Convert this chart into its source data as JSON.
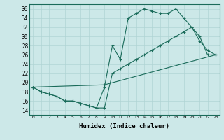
{
  "xlabel": "Humidex (Indice chaleur)",
  "xlim": [
    -0.5,
    23.5
  ],
  "ylim": [
    13,
    37
  ],
  "xticks": [
    0,
    1,
    2,
    3,
    4,
    5,
    6,
    7,
    8,
    9,
    10,
    11,
    12,
    13,
    14,
    15,
    16,
    17,
    18,
    19,
    20,
    21,
    22,
    23
  ],
  "yticks": [
    14,
    16,
    18,
    20,
    22,
    24,
    26,
    28,
    30,
    32,
    34,
    36
  ],
  "bg_color": "#cce8e8",
  "line_color": "#1a6b5a",
  "grid_color": "#b0d4d4",
  "line1_x": [
    0,
    1,
    2,
    3,
    4,
    5,
    6,
    7,
    8,
    9,
    10,
    11,
    12,
    13,
    14,
    15,
    16,
    17,
    18,
    19,
    20,
    21,
    22,
    23
  ],
  "line1_y": [
    19,
    18,
    17.5,
    17,
    16,
    16,
    15.5,
    15,
    14.5,
    19,
    28,
    25,
    34,
    35,
    36,
    35.5,
    35,
    35,
    36,
    34,
    32,
    29,
    27,
    26
  ],
  "line2_x": [
    0,
    1,
    2,
    3,
    4,
    5,
    6,
    7,
    8,
    9,
    10,
    11,
    12,
    13,
    14,
    15,
    16,
    17,
    18,
    19,
    20,
    21,
    22,
    23
  ],
  "line2_y": [
    19,
    18,
    17.5,
    17,
    16,
    16,
    15.5,
    15,
    14.5,
    14.5,
    22,
    23,
    24,
    25,
    26,
    27,
    28,
    29,
    30,
    31,
    32,
    30,
    26,
    26
  ],
  "line3_x": [
    0,
    9,
    23
  ],
  "line3_y": [
    19,
    19.5,
    26
  ]
}
